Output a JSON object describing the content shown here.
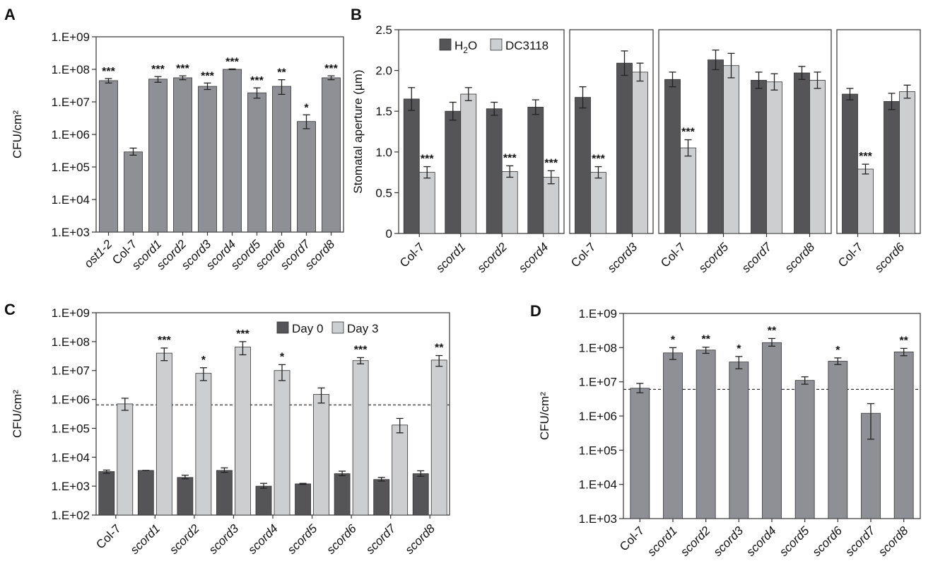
{
  "colors": {
    "medium_gray": "#8e9095",
    "dark_gray": "#555558",
    "light_gray": "#cdcecf",
    "axis": "#333333"
  },
  "chart_data": [
    {
      "panel": "A",
      "type": "bar",
      "scale": "log",
      "ylabel": "CFU/cm²",
      "ylim": [
        1000,
        1000000000
      ],
      "yticks": [
        "1.E+03",
        "1.E+04",
        "1.E+05",
        "1.E+06",
        "1.E+07",
        "1.E+08",
        "1.E+09"
      ],
      "categories": [
        "ost1-2",
        "Col-7",
        "scord1",
        "scord2",
        "scord3",
        "scord4",
        "scord5",
        "scord6",
        "scord7",
        "scord8"
      ],
      "italic": [
        true,
        false,
        true,
        true,
        true,
        true,
        true,
        true,
        true,
        true
      ],
      "values": [
        45000000,
        290000,
        50000000,
        55000000,
        30000000,
        100000000,
        19000000,
        30000000,
        2500000,
        55000000
      ],
      "err_low": [
        38000000,
        230000,
        40000000,
        48000000,
        24000000,
        98000000,
        13000000,
        17000000,
        1500000,
        48000000
      ],
      "err_high": [
        52000000,
        380000,
        60000000,
        63000000,
        38000000,
        103000000,
        27000000,
        48000000,
        4000000,
        63000000
      ],
      "significance": [
        "***",
        "",
        "***",
        "***",
        "***",
        "***",
        "***",
        "**",
        "*",
        "***"
      ]
    },
    {
      "panel": "B",
      "type": "bar",
      "scale": "linear",
      "ylabel": "Stomatal aperture (µm)",
      "ylim": [
        0,
        2.5
      ],
      "yticks": [
        "0",
        "0.5",
        "1.0",
        "1.5",
        "2.0",
        "2.5"
      ],
      "legend": {
        "placement": "top-left",
        "series_a": "H",
        "series_a_sub": "2",
        "series_a_tail": "O",
        "series_b": "DC3118"
      },
      "groups": [
        {
          "categories": [
            "Col-7",
            "scord1",
            "scord2",
            "scord4"
          ],
          "italic": [
            false,
            true,
            true,
            true
          ],
          "h2o": [
            1.65,
            1.5,
            1.53,
            1.55
          ],
          "h2o_err": [
            0.14,
            0.11,
            0.08,
            0.09
          ],
          "dc": [
            0.75,
            1.71,
            0.76,
            0.69
          ],
          "dc_err": [
            0.07,
            0.08,
            0.07,
            0.08
          ],
          "significance": [
            "***",
            "",
            "***",
            "***"
          ]
        },
        {
          "categories": [
            "Col-7",
            "scord3"
          ],
          "italic": [
            false,
            true
          ],
          "h2o": [
            1.67,
            2.09
          ],
          "h2o_err": [
            0.13,
            0.15
          ],
          "dc": [
            0.75,
            1.98
          ],
          "dc_err": [
            0.07,
            0.11
          ],
          "significance": [
            "***",
            ""
          ]
        },
        {
          "categories": [
            "Col-7",
            "scord5",
            "scord7",
            "scord8"
          ],
          "italic": [
            false,
            true,
            true,
            true
          ],
          "h2o": [
            1.89,
            2.13,
            1.88,
            1.97
          ],
          "h2o_err": [
            0.09,
            0.12,
            0.1,
            0.08
          ],
          "dc": [
            1.05,
            2.06,
            1.86,
            1.88
          ],
          "dc_err": [
            0.1,
            0.15,
            0.1,
            0.1
          ],
          "significance": [
            "***",
            "",
            "",
            ""
          ]
        },
        {
          "categories": [
            "Col-7",
            "scord6"
          ],
          "italic": [
            false,
            true
          ],
          "h2o": [
            1.71,
            1.62
          ],
          "h2o_err": [
            0.07,
            0.1
          ],
          "dc": [
            0.79,
            1.74
          ],
          "dc_err": [
            0.06,
            0.08
          ],
          "significance": [
            "***",
            ""
          ]
        }
      ]
    },
    {
      "panel": "C",
      "type": "bar",
      "scale": "log",
      "ylabel": "CFU/cm²",
      "ylim": [
        100,
        1000000000
      ],
      "yticks": [
        "1.E+02",
        "1.E+03",
        "1.E+04",
        "1.E+05",
        "1.E+06",
        "1.E+07",
        "1.E+08",
        "1.E+09"
      ],
      "legend": {
        "placement": "top-center",
        "series_a": "Day 0",
        "series_b": "Day 3"
      },
      "reference_line": 650000,
      "categories": [
        "Col-7",
        "scord1",
        "scord2",
        "scord3",
        "scord4",
        "scord5",
        "scord6",
        "scord7",
        "scord8"
      ],
      "italic": [
        false,
        true,
        true,
        true,
        true,
        true,
        true,
        true,
        true
      ],
      "day0": [
        3200,
        3500,
        2000,
        3500,
        1000,
        1200,
        2700,
        1700,
        2700
      ],
      "day0_low": [
        2800,
        3500,
        1800,
        3000,
        850,
        1150,
        2300,
        1500,
        2200
      ],
      "day0_high": [
        3600,
        3500,
        2400,
        4300,
        1250,
        1250,
        3300,
        2000,
        3400
      ],
      "day3": [
        700000,
        40000000,
        8000000,
        65000000,
        10000000,
        1500000,
        22000000,
        130000,
        23000000
      ],
      "day3_low": [
        420000,
        22000000,
        4500000,
        35000000,
        4500000,
        750000,
        17000000,
        70000,
        14000000
      ],
      "day3_high": [
        1100000,
        60000000,
        12500000,
        100000000,
        16000000,
        2500000,
        28000000,
        220000,
        33000000
      ],
      "significance": [
        "",
        "***",
        "*",
        "***",
        "*",
        "",
        "***",
        "",
        "**"
      ]
    },
    {
      "panel": "D",
      "type": "bar",
      "scale": "log",
      "ylabel": "CFU/cm²",
      "ylim": [
        1000,
        1000000000
      ],
      "yticks": [
        "1.E+03",
        "1.E+04",
        "1.E+05",
        "1.E+06",
        "1.E+07",
        "1.E+08",
        "1.E+09"
      ],
      "reference_line": 6000000,
      "categories": [
        "Col-7",
        "scord1",
        "scord2",
        "scord3",
        "scord4",
        "scord5",
        "scord6",
        "scord7",
        "scord8"
      ],
      "italic": [
        false,
        true,
        true,
        true,
        true,
        true,
        true,
        true,
        true
      ],
      "values": [
        6500000,
        70000000,
        85000000,
        38000000,
        140000000,
        11000000,
        40000000,
        1200000,
        75000000
      ],
      "err_low": [
        4800000,
        45000000,
        68000000,
        24000000,
        110000000,
        8500000,
        32000000,
        210000,
        58000000
      ],
      "err_high": [
        9000000,
        100000000,
        103000000,
        55000000,
        185000000,
        14000000,
        50000000,
        2300000,
        95000000
      ],
      "significance": [
        "",
        "*",
        "**",
        "*",
        "**",
        "",
        "*",
        "",
        "**"
      ]
    }
  ]
}
